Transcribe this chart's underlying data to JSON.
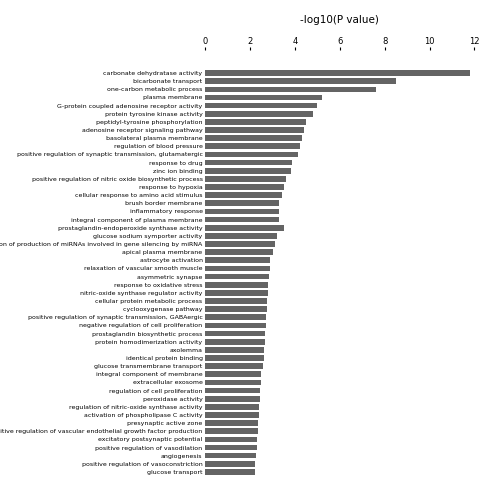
{
  "title": "-log10(P value)",
  "categories": [
    "carbonate dehydratase activity",
    "bicarbonate transport",
    "one-carbon metabolic process",
    "plasma membrane",
    "G-protein coupled adenosine receptor activity",
    "protein tyrosine kinase activity",
    "peptidyl-tyrosine phosphorylation",
    "adenosine receptor signaling pathway",
    "basolateral plasma membrane",
    "regulation of blood pressure",
    "positive regulation of synaptic transmission, glutamatergic",
    "response to drug",
    "zinc ion binding",
    "positive regulation of nitric oxide biosynthetic process",
    "response to hypoxia",
    "cellular response to amino acid stimulus",
    "brush border membrane",
    "inflammatory response",
    "integral component of plasma membrane",
    "prostaglandin-endoperoxide synthase activity",
    "glucose sodium symporter activity",
    "positive regulation of production of miRNAs involved in gene silencing by miRNA",
    "apical plasma membrane",
    "astrocyte activation",
    "relaxation of vascular smooth muscle",
    "asymmetric synapse",
    "response to oxidative stress",
    "nitric-oxide synthase regulator activity",
    "cellular protein metabolic process",
    "cyclooxygenase pathway",
    "positive regulation of synaptic transmission, GABAergic",
    "negative regulation of cell proliferation",
    "prostaglandin biosynthetic process",
    "protein homodimerization activity",
    "axolemma",
    "identical protein binding",
    "glucose transmembrane transport",
    "integral component of membrane",
    "extracellular exosome",
    "regulation of cell proliferation",
    "peroxidase activity",
    "regulation of nitric-oxide synthase activity",
    "activation of phospholipase C activity",
    "presynaptic active zone",
    "positive regulation of vascular endothelial growth factor production",
    "excitatory postsynaptic potential",
    "positive regulation of vasodilation",
    "angiogenesis",
    "positive regulation of vasoconstriction",
    "glucose transport"
  ],
  "values": [
    11.8,
    8.5,
    7.6,
    5.2,
    5.0,
    4.8,
    4.5,
    4.4,
    4.3,
    4.2,
    4.15,
    3.85,
    3.8,
    3.6,
    3.5,
    3.4,
    3.3,
    3.3,
    3.3,
    3.5,
    3.2,
    3.1,
    3.0,
    2.9,
    2.9,
    2.85,
    2.8,
    2.8,
    2.75,
    2.75,
    2.7,
    2.7,
    2.65,
    2.65,
    2.6,
    2.6,
    2.55,
    2.5,
    2.5,
    2.45,
    2.45,
    2.4,
    2.4,
    2.35,
    2.35,
    2.3,
    2.3,
    2.25,
    2.2,
    2.2
  ],
  "bar_color": "#646464",
  "background_color": "#ffffff",
  "xlim": [
    0,
    12
  ],
  "xticks": [
    0,
    2,
    4,
    6,
    8,
    10,
    12
  ],
  "title_fontsize": 7.5,
  "label_fontsize": 4.5,
  "tick_fontsize": 6.0
}
